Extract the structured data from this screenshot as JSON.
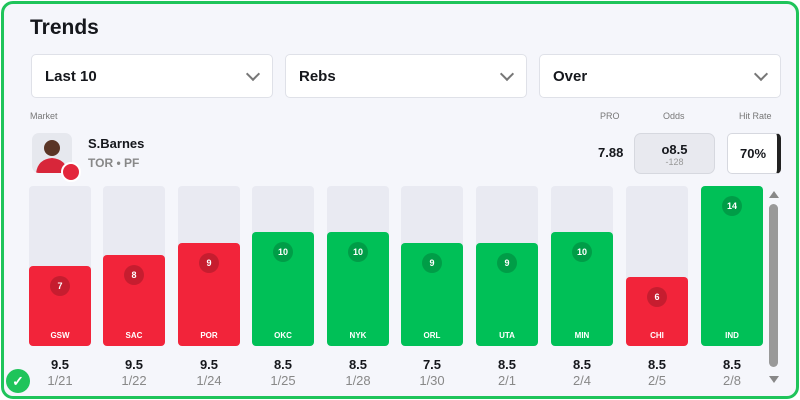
{
  "title": "Trends",
  "filters": [
    {
      "value": "Last 10"
    },
    {
      "value": "Rebs"
    },
    {
      "value": "Over"
    }
  ],
  "labels": {
    "market": "Market",
    "pro": "PRO",
    "odds": "Odds",
    "hit_rate": "Hit Rate"
  },
  "player": {
    "name": "S.Barnes",
    "team_pos": "TOR • PF",
    "pro": "7.88",
    "odds_line": "o8.5",
    "odds_price": "-128",
    "hit_rate": "70%"
  },
  "colors": {
    "hit": "#00c057",
    "miss": "#f2243a",
    "accent": "#1fc45a"
  },
  "chart_data": {
    "type": "bar",
    "max": 14,
    "games": [
      {
        "opp": "GSW",
        "value": 7,
        "line": "9.5",
        "date": "1/21"
      },
      {
        "opp": "SAC",
        "value": 8,
        "line": "9.5",
        "date": "1/22"
      },
      {
        "opp": "POR",
        "value": 9,
        "line": "9.5",
        "date": "1/24"
      },
      {
        "opp": "OKC",
        "value": 10,
        "line": "8.5",
        "date": "1/25"
      },
      {
        "opp": "NYK",
        "value": 10,
        "line": "8.5",
        "date": "1/28"
      },
      {
        "opp": "ORL",
        "value": 9,
        "line": "7.5",
        "date": "1/30"
      },
      {
        "opp": "UTA",
        "value": 9,
        "line": "8.5",
        "date": "2/1"
      },
      {
        "opp": "MIN",
        "value": 10,
        "line": "8.5",
        "date": "2/4"
      },
      {
        "opp": "CHI",
        "value": 6,
        "line": "8.5",
        "date": "2/5"
      },
      {
        "opp": "IND",
        "value": 14,
        "line": "8.5",
        "date": "2/8"
      }
    ]
  }
}
